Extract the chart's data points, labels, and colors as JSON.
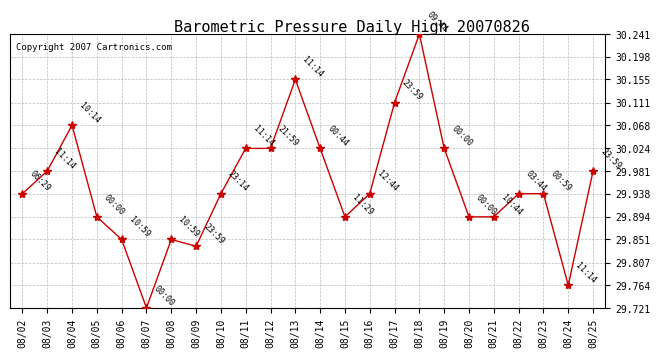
{
  "title": "Barometric Pressure Daily High 20070826",
  "copyright": "Copyright 2007 Cartronics.com",
  "x_labels": [
    "08/02",
    "08/03",
    "08/04",
    "08/05",
    "08/06",
    "08/07",
    "08/08",
    "08/09",
    "08/10",
    "08/11",
    "08/12",
    "08/13",
    "08/14",
    "08/15",
    "08/16",
    "08/17",
    "08/18",
    "08/19",
    "08/20",
    "08/21",
    "08/22",
    "08/23",
    "08/24",
    "08/25"
  ],
  "y_values": [
    29.938,
    29.981,
    30.068,
    29.894,
    29.851,
    29.721,
    29.851,
    29.838,
    29.938,
    30.024,
    30.024,
    30.155,
    30.024,
    29.894,
    29.938,
    30.111,
    30.241,
    30.024,
    29.894,
    29.894,
    29.938,
    29.938,
    29.764,
    29.981
  ],
  "point_labels": [
    "06:29",
    "11:14",
    "10:14",
    "00:00",
    "10:59",
    "00:00",
    "10:59",
    "23:59",
    "23:14",
    "11:14",
    "21:59",
    "11:14",
    "00:44",
    "11:29",
    "12:44",
    "23:59",
    "09:44",
    "00:00",
    "00:00",
    "10:44",
    "03:44",
    "00:59",
    "11:14",
    "23:59"
  ],
  "ylim_min": 29.721,
  "ylim_max": 30.241,
  "yticks": [
    29.721,
    29.764,
    29.807,
    29.851,
    29.894,
    29.938,
    29.981,
    30.024,
    30.068,
    30.111,
    30.155,
    30.198,
    30.241
  ],
  "line_color": "#cc0000",
  "marker_color": "#cc0000",
  "background_color": "#ffffff",
  "grid_color": "#bbbbbb",
  "title_fontsize": 11,
  "copyright_fontsize": 6.5,
  "label_fontsize": 6,
  "tick_fontsize": 7
}
